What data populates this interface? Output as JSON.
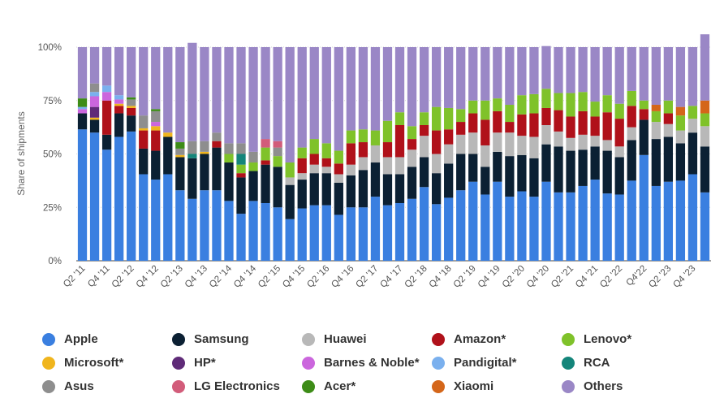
{
  "chart_data": {
    "type": "bar",
    "stacked": true,
    "ylabel": "Share of shipments",
    "ylim": [
      0,
      100
    ],
    "yticks": [
      "0%",
      "25%",
      "50%",
      "75%",
      "100%"
    ],
    "grid": true,
    "legend_position": "bottom",
    "x_tick_labels": [
      "Q2 '11",
      "Q4 '11",
      "Q2 '12",
      "Q4 '12",
      "Q2 '13",
      "Q4 '13",
      "Q2 '14",
      "Q4 '14",
      "Q2 '15",
      "Q4 '15",
      "Q2 '16",
      "Q4 '16",
      "Q2 '17",
      "Q4 '17",
      "Q2 '18",
      "Q4 '18",
      "Q2 '19",
      "Q4 '19",
      "Q2 '20",
      "Q4 '20",
      "Q2 '21",
      "Q4 '21",
      "Q2 '22",
      "Q4'22",
      "Q2 '23",
      "Q4 '23"
    ],
    "categories": [
      "Q2 '11",
      "Q3 '11",
      "Q4 '11",
      "Q1 '12",
      "Q2 '12",
      "Q3 '12",
      "Q4 '12",
      "Q1 '13",
      "Q2 '13",
      "Q3 '13",
      "Q4 '13",
      "Q1 '14",
      "Q2 '14",
      "Q3 '14",
      "Q4 '14",
      "Q1 '15",
      "Q2 '15",
      "Q3 '15",
      "Q4 '15",
      "Q1 '16",
      "Q2 '16",
      "Q3 '16",
      "Q4 '16",
      "Q1 '17",
      "Q2 '17",
      "Q3 '17",
      "Q4 '17",
      "Q1 '18",
      "Q2 '18",
      "Q3 '18",
      "Q4 '18",
      "Q1 '19",
      "Q2 '19",
      "Q3 '19",
      "Q4 '19",
      "Q1 '20",
      "Q2 '20",
      "Q3 '20",
      "Q4 '20",
      "Q1 '21",
      "Q2 '21",
      "Q3 '21",
      "Q4 '21",
      "Q1 '22",
      "Q2 '22",
      "Q3 '22",
      "Q4'22",
      "Q1 '23",
      "Q2 '23",
      "Q3 '23",
      "Q4 '23",
      "Q1 '24"
    ],
    "series": [
      {
        "name": "Apple",
        "color": "#3a7fe0",
        "values": [
          61.5,
          60,
          52,
          58,
          60.5,
          40.5,
          38,
          40.5,
          33,
          29,
          33,
          33,
          28,
          22,
          28,
          27,
          25,
          19.5,
          24.5,
          26,
          26,
          21.5,
          25,
          25,
          30,
          26,
          27,
          29,
          34.5,
          26.5,
          29.5,
          33,
          37,
          31,
          37,
          30,
          32.5,
          30,
          37,
          32,
          32,
          35,
          38,
          31.5,
          31,
          37.5,
          49.5,
          35,
          37,
          37.5,
          40.5,
          32
        ]
      },
      {
        "name": "Samsung",
        "color": "#0b2033",
        "values": [
          7.5,
          6,
          7,
          11,
          7.5,
          12,
          13.5,
          17.5,
          15.5,
          19,
          17,
          20,
          18,
          17,
          14,
          18,
          19,
          16,
          13.5,
          15,
          15,
          15,
          15,
          17.5,
          16,
          14.5,
          13.5,
          15,
          14,
          14.5,
          16,
          17,
          13,
          13,
          14,
          19,
          17,
          18,
          17.5,
          21.5,
          19.5,
          17,
          15.5,
          20,
          17.5,
          19,
          16.5,
          22,
          21,
          17.5,
          19.5,
          21.5
        ]
      },
      {
        "name": "Huawei",
        "color": "#b8b8b8",
        "values": [
          0,
          0,
          0,
          0,
          0,
          0,
          0,
          0,
          0,
          0,
          0,
          0,
          0,
          0,
          0,
          0,
          0,
          3.5,
          3,
          4,
          3,
          4,
          5,
          6,
          8,
          8,
          8,
          8,
          10,
          9,
          9,
          9,
          10,
          10,
          9,
          11,
          9,
          10,
          9,
          7,
          6,
          7,
          5,
          5,
          5,
          6,
          0,
          8,
          6,
          6,
          6.5,
          9.5
        ]
      },
      {
        "name": "Amazon*",
        "color": "#b0111a",
        "values": [
          0,
          0,
          16,
          3.5,
          3.5,
          8.5,
          9.5,
          0,
          0,
          0,
          0,
          3,
          0,
          2,
          0,
          2,
          0,
          0,
          7,
          5,
          4,
          5,
          10,
          7,
          0,
          7,
          15,
          5,
          5,
          11,
          7,
          6,
          9,
          12,
          10,
          5,
          10,
          11,
          8,
          10,
          10,
          11,
          9,
          13,
          13,
          10,
          5,
          0,
          5,
          0,
          0,
          0
        ]
      },
      {
        "name": "Lenovo*",
        "color": "#7fc22a",
        "values": [
          0,
          0,
          0,
          0,
          0,
          0,
          0,
          0,
          0,
          0,
          0,
          0,
          4,
          4,
          4,
          6,
          5,
          7,
          5,
          7,
          7,
          6,
          6,
          6,
          7,
          10,
          6,
          6,
          6,
          11,
          10,
          6,
          6,
          9,
          6,
          8,
          9,
          9,
          9,
          8,
          11,
          9,
          7,
          8,
          7,
          7,
          4,
          5,
          6,
          7,
          6,
          6
        ]
      },
      {
        "name": "Microsoft*",
        "color": "#f0b51d",
        "values": [
          0,
          1,
          0,
          1,
          1,
          1,
          2,
          2,
          1,
          0,
          1,
          0,
          0,
          0,
          0,
          0,
          0,
          0,
          0,
          0,
          0,
          0,
          0,
          0,
          0,
          0,
          0,
          0,
          0,
          0,
          0,
          0,
          0,
          0,
          0,
          0,
          0,
          0,
          0,
          0,
          0,
          0,
          0,
          0,
          0,
          0,
          0,
          0,
          0,
          0,
          0,
          0
        ]
      },
      {
        "name": "HP*",
        "color": "#5f2b78",
        "values": [
          0,
          5,
          0,
          0,
          0,
          0,
          0,
          0,
          0,
          0,
          0,
          0,
          0,
          0,
          0,
          0,
          0,
          0,
          0,
          0,
          0,
          0,
          0,
          0,
          0,
          0,
          0,
          0,
          0,
          0,
          0,
          0,
          0,
          0,
          0,
          0,
          0,
          0,
          0,
          0,
          0,
          0,
          0,
          0,
          0,
          0,
          0,
          0,
          0,
          0,
          0,
          0
        ]
      },
      {
        "name": "Barnes & Noble*",
        "color": "#cb66dd",
        "values": [
          2,
          5,
          4,
          2,
          0,
          0,
          2,
          0,
          0,
          0,
          0,
          0,
          0,
          0,
          0,
          0,
          0,
          0,
          0,
          0,
          0,
          0,
          0,
          0,
          0,
          0,
          0,
          0,
          0,
          0,
          0,
          0,
          0,
          0,
          0,
          0,
          0,
          0,
          0,
          0,
          0,
          0,
          0,
          0,
          0,
          0,
          0,
          0,
          0,
          0,
          0,
          0
        ]
      },
      {
        "name": "Pandigital*",
        "color": "#7ab0ee",
        "values": [
          1,
          2,
          3,
          2,
          0,
          0,
          0,
          0,
          0,
          0,
          0,
          0,
          0,
          0,
          0,
          0,
          0,
          0,
          0,
          0,
          0,
          0,
          0,
          0,
          0,
          0,
          0,
          0,
          0,
          0,
          0,
          0,
          0,
          0,
          0,
          0,
          0,
          0,
          0,
          0,
          0,
          0,
          0,
          0,
          0,
          0,
          0,
          0,
          0,
          0,
          0,
          0
        ]
      },
      {
        "name": "RCA",
        "color": "#14857a",
        "values": [
          0,
          0,
          0,
          0,
          0,
          0,
          0,
          0,
          0,
          2,
          0,
          0,
          0,
          5,
          0,
          0,
          0,
          0,
          0,
          0,
          0,
          0,
          0,
          0,
          0,
          0,
          0,
          0,
          0,
          0,
          0,
          0,
          0,
          0,
          0,
          0,
          0,
          0,
          0,
          0,
          0,
          0,
          0,
          0,
          0,
          0,
          0,
          0,
          0,
          0,
          0,
          0
        ]
      },
      {
        "name": "Asus",
        "color": "#8e8e8e",
        "values": [
          0,
          4,
          0,
          0,
          3,
          6,
          5,
          0,
          3,
          6,
          5,
          4,
          5,
          5,
          5,
          0,
          4,
          0,
          0,
          0,
          0,
          0,
          0,
          0,
          0,
          0,
          0,
          0,
          0,
          0,
          0,
          0,
          0,
          0,
          0,
          0,
          0,
          0,
          0,
          0,
          0,
          0,
          0,
          0,
          0,
          0,
          0,
          0,
          0,
          0,
          0,
          0
        ]
      },
      {
        "name": "LG Electronics",
        "color": "#d25c7a",
        "values": [
          0,
          0,
          0,
          0,
          0,
          0,
          0,
          0,
          0,
          0,
          0,
          0,
          0,
          0,
          0,
          4,
          3,
          0,
          0,
          0,
          0,
          0,
          0,
          0,
          0,
          0,
          0,
          0,
          0,
          0,
          0,
          0,
          0,
          0,
          0,
          0,
          0,
          0,
          0,
          0,
          0,
          0,
          0,
          0,
          0,
          0,
          0,
          0,
          0,
          0,
          0,
          0
        ]
      },
      {
        "name": "Acer*",
        "color": "#3d8c17",
        "values": [
          4,
          0,
          0,
          0,
          1,
          0,
          1,
          0,
          3,
          0,
          0,
          0,
          0,
          0,
          0,
          0,
          0,
          0,
          0,
          0,
          0,
          0,
          0,
          0,
          0,
          0,
          0,
          0,
          0,
          0,
          0,
          0,
          0,
          0,
          0,
          0,
          0,
          0,
          0,
          0,
          0,
          0,
          0,
          0,
          0,
          0,
          0,
          0,
          0,
          0,
          0,
          0
        ]
      },
      {
        "name": "Xiaomi",
        "color": "#d4661a",
        "values": [
          0,
          0,
          0,
          0,
          0,
          0,
          0,
          0,
          0,
          0,
          0,
          0,
          0,
          0,
          0,
          0,
          0,
          0,
          0,
          0,
          0,
          0,
          0,
          0,
          0,
          0,
          0,
          0,
          0,
          0,
          0,
          0,
          0,
          0,
          0,
          0,
          0,
          0,
          0,
          0,
          0,
          0,
          0,
          0,
          0,
          0,
          0,
          3,
          0,
          4,
          0,
          6
        ]
      },
      {
        "name": "Others",
        "color": "#9a87c6",
        "values": [
          24,
          17,
          18,
          22.5,
          23.5,
          32,
          29,
          40,
          44.5,
          46,
          44,
          40,
          45,
          45,
          49,
          43,
          44,
          54,
          47,
          43,
          45,
          48.5,
          39,
          38.5,
          39,
          34.5,
          30.5,
          37,
          30.5,
          28,
          28.5,
          29,
          25,
          25,
          24,
          27,
          22.5,
          22,
          20,
          21.5,
          21.5,
          21,
          25.5,
          22.5,
          26.5,
          20.5,
          25,
          27,
          25,
          28,
          27.5,
          31
        ]
      }
    ]
  }
}
